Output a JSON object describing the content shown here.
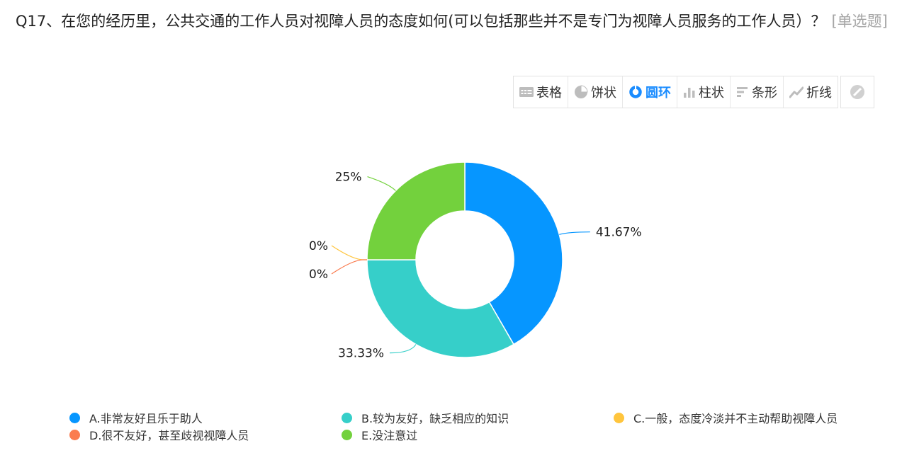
{
  "question": {
    "title": "Q17、在您的经历里，公共交通的工作人员对视障人员的态度如何(可以包括那些并不是专门为视障人员服务的工作人员）？",
    "type": "[单选题]"
  },
  "toolbar": {
    "table": "表格",
    "pie": "饼状",
    "donut": "圆环",
    "bar": "柱状",
    "hbar": "条形",
    "line": "折线",
    "hide_icon": "hide-icon"
  },
  "colors": {
    "active": "#1a8cff",
    "icon_gray": "#bdbdbd"
  },
  "chart_data": {
    "type": "pie",
    "variant": "donut",
    "series": [
      {
        "name": "A.非常友好且乐于助人",
        "value": 41.67,
        "label": "41.67%",
        "color": "#0696ff"
      },
      {
        "name": "B.较为友好，缺乏相应的知识",
        "value": 33.33,
        "label": "33.33%",
        "color": "#36cfc9"
      },
      {
        "name": "C.一般，态度冷淡并不主动帮助视障人员",
        "value": 0,
        "label": "0%",
        "color": "#ffc53d"
      },
      {
        "name": "D.很不友好，甚至歧视视障人员",
        "value": 0,
        "label": "0%",
        "color": "#fa7c4f"
      },
      {
        "name": "E.没注意过",
        "value": 25,
        "label": "25%",
        "color": "#73d13d"
      }
    ],
    "legend_position": "bottom"
  }
}
